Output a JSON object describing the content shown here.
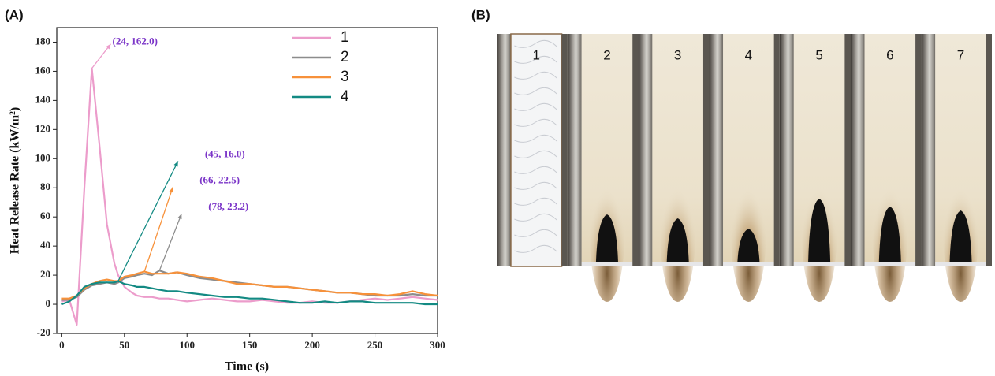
{
  "chart_data": {
    "type": "line",
    "panel_label": "(A)",
    "x_label": "Time (s)",
    "y_label": "Heat Release Rate (kW/m²)",
    "x": [
      0,
      6,
      12,
      18,
      24,
      30,
      36,
      42,
      45,
      50,
      56,
      60,
      66,
      72,
      78,
      85,
      92,
      100,
      110,
      120,
      130,
      140,
      150,
      160,
      170,
      180,
      190,
      200,
      210,
      220,
      230,
      240,
      250,
      260,
      270,
      280,
      290,
      300
    ],
    "series": [
      {
        "name": "1",
        "color": "#ec9ccb",
        "values": [
          2,
          3,
          -14,
          80,
          162,
          110,
          55,
          28,
          20,
          12,
          8,
          6,
          5,
          5,
          4,
          4,
          3,
          2,
          3,
          4,
          3,
          2,
          2,
          3,
          2,
          1,
          1,
          2,
          1,
          1,
          2,
          3,
          4,
          3,
          4,
          5,
          4,
          3
        ]
      },
      {
        "name": "2",
        "color": "#8c8c8c",
        "values": [
          3,
          3,
          5,
          10,
          13,
          14,
          15,
          14,
          15,
          18,
          19,
          20,
          21,
          20,
          23.2,
          21,
          22,
          20,
          18,
          17,
          16,
          15,
          14,
          13,
          12,
          12,
          11,
          10,
          9,
          8,
          8,
          7,
          6,
          6,
          6,
          7,
          6,
          6
        ]
      },
      {
        "name": "3",
        "color": "#f7913a",
        "values": [
          4,
          4,
          6,
          11,
          14,
          16,
          17,
          16,
          16,
          19,
          20,
          21,
          22.5,
          21,
          21,
          21,
          22,
          21,
          19,
          18,
          16,
          14,
          14,
          13,
          12,
          12,
          11,
          10,
          9,
          8,
          8,
          7,
          7,
          6,
          7,
          9,
          7,
          6
        ]
      },
      {
        "name": "4",
        "color": "#138a83",
        "values": [
          0,
          2,
          6,
          12,
          14,
          15,
          15,
          15,
          16,
          14,
          13,
          12,
          12,
          11,
          10,
          9,
          9,
          8,
          7,
          6,
          5,
          5,
          4,
          4,
          3,
          2,
          1,
          1,
          2,
          1,
          2,
          2,
          1,
          1,
          1,
          1,
          0,
          0
        ]
      }
    ],
    "xlim": [
      -4,
      300
    ],
    "xticks": [
      0,
      50,
      100,
      150,
      200,
      250,
      300
    ],
    "ylim": [
      -20,
      190
    ],
    "yticks": [
      -20,
      0,
      20,
      40,
      60,
      80,
      100,
      120,
      140,
      160,
      180
    ],
    "legend": "top-right",
    "annotations": [
      {
        "text": "(24, 162.0)",
        "x": 24,
        "y": 162.0,
        "color": "#ec9ccb"
      },
      {
        "text": "(45, 16.0)",
        "x": 45,
        "y": 16.0,
        "color": "#138a83"
      },
      {
        "text": "(66, 22.5)",
        "x": 66,
        "y": 22.5,
        "color": "#f7913a"
      },
      {
        "text": "(78, 23.2)",
        "x": 78,
        "y": 23.2,
        "color": "#8c8c8c"
      }
    ]
  },
  "photos": {
    "panel_label": "(B)",
    "labels": [
      "1",
      "2",
      "3",
      "4",
      "5",
      "6",
      "7"
    ]
  }
}
